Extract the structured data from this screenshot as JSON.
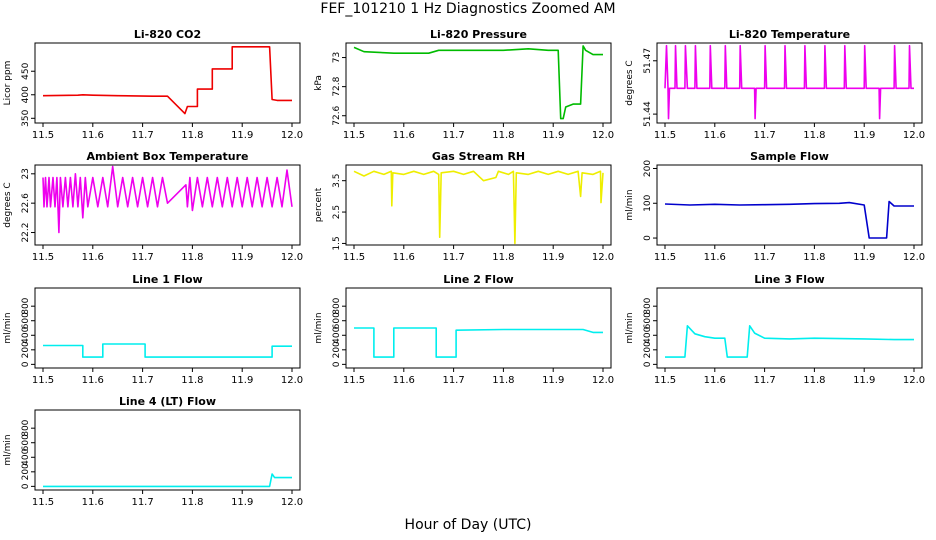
{
  "title": "FEF_101210  1 Hz Diagnostics Zoomed AM",
  "xlabel": "Hour of Day (UTC)",
  "chart_data": [
    {
      "type": "line",
      "title": "Li-820 CO2",
      "ylabel": "Licor ppm",
      "color": "#ee0000",
      "xlim": [
        11.5,
        12.0
      ],
      "ylim": [
        340,
        510
      ],
      "yticks": [
        350,
        400,
        450
      ],
      "segments": [
        [
          [
            11.5,
            398
          ],
          [
            11.57,
            399
          ],
          [
            11.58,
            400
          ],
          [
            11.6,
            399
          ],
          [
            11.65,
            398
          ],
          [
            11.72,
            397
          ],
          [
            11.75,
            397
          ],
          [
            11.785,
            360
          ],
          [
            11.79,
            375
          ],
          [
            11.81,
            375
          ],
          [
            11.81,
            412
          ],
          [
            11.84,
            412
          ],
          [
            11.84,
            455
          ],
          [
            11.88,
            455
          ],
          [
            11.88,
            502
          ],
          [
            11.955,
            502
          ],
          [
            11.96,
            390
          ],
          [
            11.97,
            388
          ],
          [
            12.0,
            388
          ]
        ]
      ]
    },
    {
      "type": "line",
      "title": "Li-820 Pressure",
      "ylabel": "kPa",
      "color": "#00bb00",
      "xlim": [
        11.5,
        12.0
      ],
      "ylim": [
        72.55,
        73.1
      ],
      "yticks": [
        72.6,
        72.8,
        73.0
      ],
      "segments": [
        [
          [
            11.5,
            73.07
          ],
          [
            11.52,
            73.04
          ],
          [
            11.58,
            73.03
          ],
          [
            11.65,
            73.03
          ],
          [
            11.67,
            73.05
          ],
          [
            11.7,
            73.05
          ],
          [
            11.8,
            73.05
          ],
          [
            11.85,
            73.06
          ],
          [
            11.89,
            73.05
          ],
          [
            11.91,
            73.05
          ],
          [
            11.915,
            72.58
          ],
          [
            11.92,
            72.58
          ],
          [
            11.925,
            72.66
          ],
          [
            11.94,
            72.68
          ],
          [
            11.955,
            72.68
          ],
          [
            11.96,
            73.08
          ],
          [
            11.965,
            73.05
          ],
          [
            11.98,
            73.02
          ],
          [
            12.0,
            73.02
          ]
        ]
      ]
    },
    {
      "type": "line",
      "title": "Li-820 Temperature",
      "ylabel": "degrees C",
      "color": "#ee00ee",
      "xlim": [
        11.5,
        12.0
      ],
      "ylim": [
        51.435,
        51.48
      ],
      "yticks": [
        51.44,
        51.47
      ],
      "segments": [
        [
          [
            11.5,
            51.4545
          ],
          [
            11.503,
            51.4785
          ],
          [
            11.506,
            51.4545
          ],
          [
            11.507,
            51.4375
          ],
          [
            11.509,
            51.4545
          ],
          [
            11.52,
            51.4545
          ],
          [
            11.521,
            51.4785
          ],
          [
            11.524,
            51.4545
          ],
          [
            11.54,
            51.4545
          ],
          [
            11.541,
            51.4785
          ],
          [
            11.545,
            51.4545
          ],
          [
            11.56,
            51.4545
          ],
          [
            11.561,
            51.4785
          ],
          [
            11.564,
            51.4545
          ],
          [
            11.59,
            51.4545
          ],
          [
            11.591,
            51.4785
          ],
          [
            11.594,
            51.4545
          ],
          [
            11.62,
            51.4545
          ],
          [
            11.621,
            51.4785
          ],
          [
            11.624,
            51.4545
          ],
          [
            11.65,
            51.4545
          ],
          [
            11.651,
            51.4785
          ],
          [
            11.654,
            51.4545
          ],
          [
            11.68,
            51.4545
          ],
          [
            11.681,
            51.4375
          ],
          [
            11.683,
            51.4545
          ],
          [
            11.7,
            51.4545
          ],
          [
            11.701,
            51.4785
          ],
          [
            11.704,
            51.4545
          ],
          [
            11.74,
            51.4545
          ],
          [
            11.741,
            51.4785
          ],
          [
            11.744,
            51.4545
          ],
          [
            11.78,
            51.4545
          ],
          [
            11.781,
            51.4785
          ],
          [
            11.784,
            51.4545
          ],
          [
            11.82,
            51.4545
          ],
          [
            11.821,
            51.4785
          ],
          [
            11.824,
            51.4545
          ],
          [
            11.86,
            51.4545
          ],
          [
            11.861,
            51.4785
          ],
          [
            11.864,
            51.4545
          ],
          [
            11.9,
            51.4545
          ],
          [
            11.901,
            51.4785
          ],
          [
            11.904,
            51.4545
          ],
          [
            11.93,
            51.4545
          ],
          [
            11.931,
            51.4375
          ],
          [
            11.933,
            51.4545
          ],
          [
            11.96,
            51.4545
          ],
          [
            11.961,
            51.4785
          ],
          [
            11.964,
            51.4545
          ],
          [
            11.99,
            51.4545
          ],
          [
            11.991,
            51.4785
          ],
          [
            11.994,
            51.4545
          ],
          [
            12.0,
            51.4545
          ]
        ]
      ]
    },
    {
      "type": "line",
      "title": "Ambient Box Temperature",
      "ylabel": "degrees C",
      "color": "#ee00ee",
      "xlim": [
        11.5,
        12.0
      ],
      "ylim": [
        22.03,
        23.12
      ],
      "yticks": [
        22.2,
        22.6,
        23.0
      ],
      "segments": [
        [
          [
            11.5,
            22.95
          ],
          [
            11.502,
            22.55
          ],
          [
            11.505,
            22.95
          ],
          [
            11.508,
            22.55
          ],
          [
            11.512,
            22.95
          ],
          [
            11.515,
            22.55
          ],
          [
            11.52,
            22.95
          ],
          [
            11.524,
            22.55
          ],
          [
            11.528,
            22.95
          ],
          [
            11.532,
            22.2
          ],
          [
            11.535,
            22.95
          ],
          [
            11.54,
            22.55
          ],
          [
            11.545,
            22.95
          ],
          [
            11.55,
            22.55
          ],
          [
            11.555,
            22.95
          ],
          [
            11.56,
            22.55
          ],
          [
            11.565,
            23.0
          ],
          [
            11.57,
            22.55
          ],
          [
            11.575,
            22.95
          ],
          [
            11.58,
            22.4
          ],
          [
            11.585,
            22.95
          ],
          [
            11.59,
            22.55
          ],
          [
            11.6,
            22.95
          ],
          [
            11.61,
            22.55
          ],
          [
            11.62,
            22.95
          ],
          [
            11.63,
            22.55
          ],
          [
            11.64,
            23.1
          ],
          [
            11.65,
            22.55
          ],
          [
            11.66,
            22.95
          ],
          [
            11.67,
            22.55
          ],
          [
            11.68,
            22.95
          ],
          [
            11.69,
            22.55
          ],
          [
            11.7,
            22.95
          ],
          [
            11.71,
            22.55
          ],
          [
            11.72,
            22.95
          ],
          [
            11.73,
            22.55
          ],
          [
            11.74,
            22.95
          ],
          [
            11.75,
            22.6
          ],
          [
            11.787,
            22.85
          ],
          [
            11.79,
            22.55
          ],
          [
            11.795,
            22.95
          ],
          [
            11.8,
            22.5
          ],
          [
            11.81,
            22.95
          ],
          [
            11.82,
            22.55
          ],
          [
            11.83,
            22.95
          ],
          [
            11.84,
            22.55
          ],
          [
            11.85,
            22.95
          ],
          [
            11.86,
            22.55
          ],
          [
            11.87,
            22.95
          ],
          [
            11.88,
            22.55
          ],
          [
            11.89,
            22.95
          ],
          [
            11.9,
            22.55
          ],
          [
            11.91,
            22.95
          ],
          [
            11.92,
            22.55
          ],
          [
            11.93,
            22.95
          ],
          [
            11.94,
            22.55
          ],
          [
            11.95,
            22.95
          ],
          [
            11.96,
            22.55
          ],
          [
            11.97,
            22.95
          ],
          [
            11.98,
            22.55
          ],
          [
            11.99,
            23.05
          ],
          [
            12.0,
            22.55
          ]
        ]
      ]
    },
    {
      "type": "line",
      "title": "Gas Stream RH",
      "ylabel": "percent",
      "color": "#eeee00",
      "xlim": [
        11.5,
        12.0
      ],
      "ylim": [
        1.45,
        4.0
      ],
      "yticks": [
        1.5,
        2.5,
        3.5
      ],
      "segments": [
        [
          [
            11.5,
            3.8
          ],
          [
            11.52,
            3.65
          ],
          [
            11.54,
            3.8
          ],
          [
            11.56,
            3.7
          ],
          [
            11.575,
            3.8
          ],
          [
            11.576,
            2.7
          ],
          [
            11.578,
            3.75
          ],
          [
            11.6,
            3.7
          ],
          [
            11.62,
            3.8
          ],
          [
            11.64,
            3.7
          ],
          [
            11.66,
            3.8
          ],
          [
            11.67,
            3.7
          ],
          [
            11.672,
            1.7
          ],
          [
            11.675,
            3.75
          ],
          [
            11.7,
            3.8
          ],
          [
            11.72,
            3.7
          ],
          [
            11.74,
            3.8
          ],
          [
            11.76,
            3.5
          ],
          [
            11.785,
            3.6
          ],
          [
            11.79,
            3.8
          ],
          [
            11.81,
            3.7
          ],
          [
            11.82,
            3.8
          ],
          [
            11.823,
            1.5
          ],
          [
            11.826,
            3.75
          ],
          [
            11.85,
            3.7
          ],
          [
            11.87,
            3.8
          ],
          [
            11.89,
            3.7
          ],
          [
            11.91,
            3.8
          ],
          [
            11.93,
            3.7
          ],
          [
            11.95,
            3.8
          ],
          [
            11.955,
            3.0
          ],
          [
            11.958,
            3.75
          ],
          [
            11.98,
            3.7
          ],
          [
            11.995,
            3.8
          ],
          [
            11.996,
            2.8
          ],
          [
            12.0,
            3.75
          ]
        ]
      ]
    },
    {
      "type": "line",
      "title": "Sample Flow",
      "ylabel": "ml/min",
      "color": "#0000cc",
      "xlim": [
        11.5,
        12.0
      ],
      "ylim": [
        -20,
        210
      ],
      "yticks": [
        0,
        100,
        200
      ],
      "segments": [
        [
          [
            11.5,
            98
          ],
          [
            11.55,
            95
          ],
          [
            11.6,
            97
          ],
          [
            11.65,
            95
          ],
          [
            11.7,
            96
          ],
          [
            11.75,
            97
          ],
          [
            11.8,
            99
          ],
          [
            11.85,
            100
          ],
          [
            11.87,
            102
          ],
          [
            11.9,
            95
          ],
          [
            11.91,
            0
          ],
          [
            11.945,
            0
          ],
          [
            11.95,
            105
          ],
          [
            11.96,
            92
          ],
          [
            12.0,
            92
          ]
        ]
      ]
    },
    {
      "type": "line",
      "title": "Line 1 Flow",
      "ylabel": "ml/min",
      "color": "#00eeee",
      "xlim": [
        11.5,
        12.0
      ],
      "ylim": [
        -50,
        1050
      ],
      "yticks": [
        0,
        200,
        400,
        600,
        800
      ],
      "segments": [
        [
          [
            11.5,
            260
          ],
          [
            11.58,
            260
          ],
          [
            11.58,
            100
          ],
          [
            11.62,
            100
          ],
          [
            11.62,
            280
          ],
          [
            11.705,
            280
          ],
          [
            11.705,
            100
          ],
          [
            11.96,
            100
          ],
          [
            11.96,
            250
          ],
          [
            12.0,
            250
          ]
        ]
      ]
    },
    {
      "type": "line",
      "title": "Line 2 Flow",
      "ylabel": "ml/min",
      "color": "#00eeee",
      "xlim": [
        11.5,
        12.0
      ],
      "ylim": [
        -50,
        1050
      ],
      "yticks": [
        0,
        200,
        400,
        600,
        800
      ],
      "segments": [
        [
          [
            11.5,
            500
          ],
          [
            11.54,
            500
          ],
          [
            11.54,
            100
          ],
          [
            11.58,
            100
          ],
          [
            11.58,
            500
          ],
          [
            11.665,
            500
          ],
          [
            11.665,
            100
          ],
          [
            11.705,
            100
          ],
          [
            11.705,
            470
          ],
          [
            11.8,
            480
          ],
          [
            11.9,
            480
          ],
          [
            11.96,
            480
          ],
          [
            11.98,
            440
          ],
          [
            12.0,
            440
          ]
        ]
      ]
    },
    {
      "type": "line",
      "title": "Line 3 Flow",
      "ylabel": "ml/min",
      "color": "#00eeee",
      "xlim": [
        11.5,
        12.0
      ],
      "ylim": [
        -50,
        1050
      ],
      "yticks": [
        0,
        200,
        400,
        600,
        800
      ],
      "segments": [
        [
          [
            11.5,
            100
          ],
          [
            11.54,
            100
          ],
          [
            11.545,
            530
          ],
          [
            11.56,
            420
          ],
          [
            11.58,
            380
          ],
          [
            11.6,
            360
          ],
          [
            11.62,
            360
          ],
          [
            11.625,
            100
          ],
          [
            11.665,
            100
          ],
          [
            11.67,
            530
          ],
          [
            11.68,
            430
          ],
          [
            11.7,
            360
          ],
          [
            11.75,
            350
          ],
          [
            11.8,
            360
          ],
          [
            11.9,
            350
          ],
          [
            11.96,
            340
          ],
          [
            12.0,
            340
          ]
        ]
      ]
    },
    {
      "type": "line",
      "title": "Line 4 (LT) Flow",
      "ylabel": "ml/min",
      "color": "#00eeee",
      "xlim": [
        11.5,
        12.0
      ],
      "ylim": [
        -50,
        1050
      ],
      "yticks": [
        0,
        200,
        400,
        600,
        800
      ],
      "segments": [
        [
          [
            11.5,
            0
          ],
          [
            11.955,
            0
          ],
          [
            11.96,
            170
          ],
          [
            11.965,
            120
          ],
          [
            12.0,
            120
          ]
        ]
      ]
    }
  ],
  "xticks": [
    "11.5",
    "11.6",
    "11.7",
    "11.8",
    "11.9",
    "12.0"
  ]
}
